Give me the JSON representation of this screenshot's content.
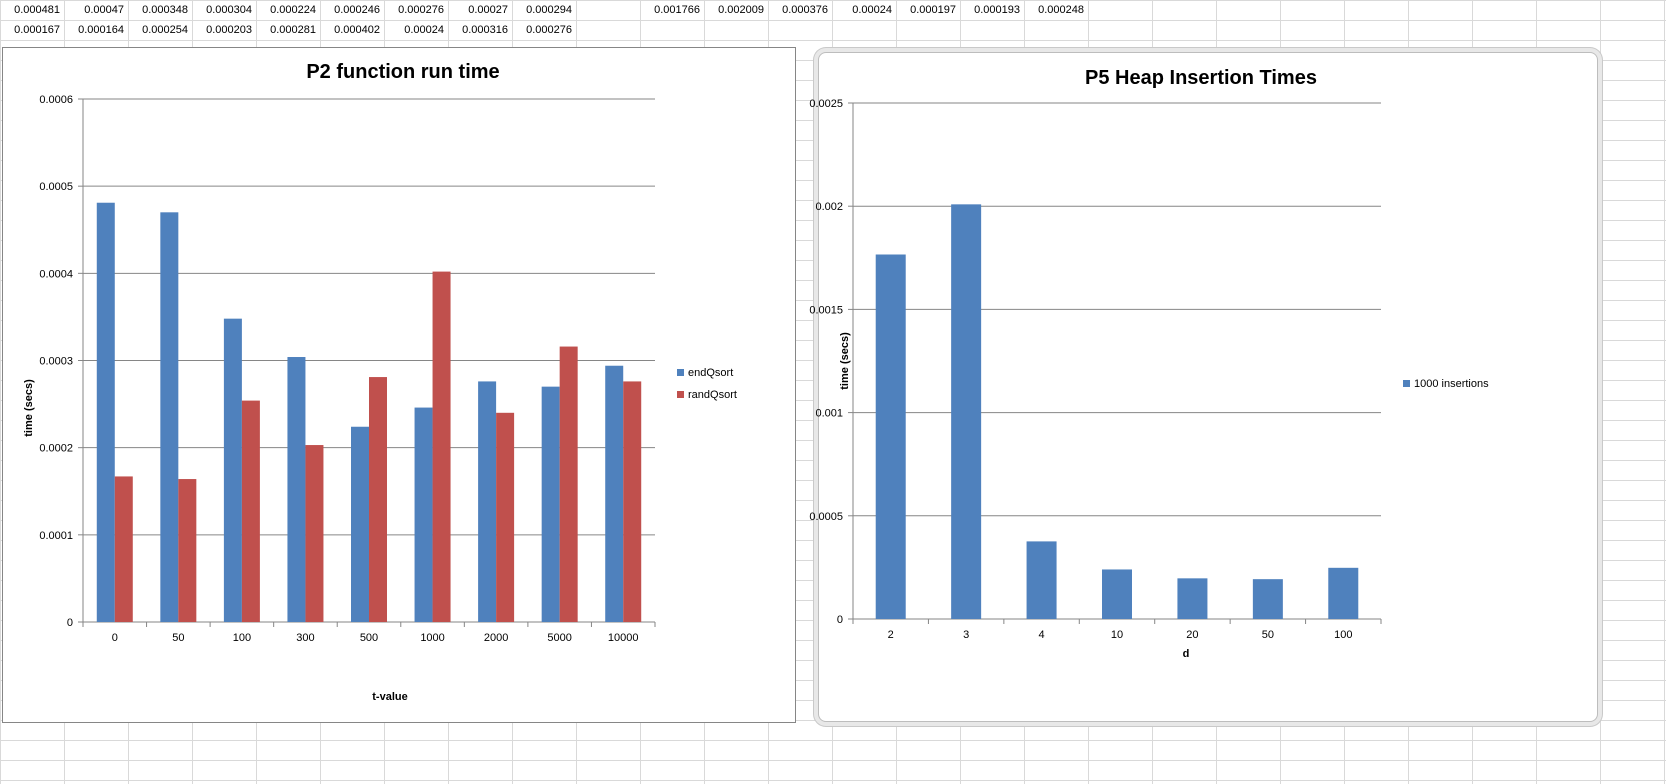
{
  "spreadsheet": {
    "row1_left": [
      "0.000481",
      "0.00047",
      "0.000348",
      "0.000304",
      "0.000224",
      "0.000246",
      "0.000276",
      "0.00027",
      "0.000294"
    ],
    "row2_left": [
      "0.000167",
      "0.000164",
      "0.000254",
      "0.000203",
      "0.000281",
      "0.000402",
      "0.00024",
      "0.000316",
      "0.000276"
    ],
    "row1_right": [
      "0.001766",
      "0.002009",
      "0.000376",
      "0.00024",
      "0.000197",
      "0.000193",
      "0.000248"
    ]
  },
  "chart_data": [
    {
      "type": "bar",
      "title": "P2 function run time",
      "xlabel": "t-value",
      "ylabel": "time (secs)",
      "categories": [
        "0",
        "50",
        "100",
        "300",
        "500",
        "1000",
        "2000",
        "5000",
        "10000"
      ],
      "series": [
        {
          "name": "endQsort",
          "color": "#4F81BD",
          "values": [
            0.000481,
            0.00047,
            0.000348,
            0.000304,
            0.000224,
            0.000246,
            0.000276,
            0.00027,
            0.000294
          ]
        },
        {
          "name": "randQsort",
          "color": "#C0504D",
          "values": [
            0.000167,
            0.000164,
            0.000254,
            0.000203,
            0.000281,
            0.000402,
            0.00024,
            0.000316,
            0.000276
          ]
        }
      ],
      "ylim": [
        0,
        0.0006
      ],
      "yticks": [
        "0",
        "0.0001",
        "0.0002",
        "0.0003",
        "0.0004",
        "0.0005",
        "0.0006"
      ],
      "grid": true,
      "legend": "right"
    },
    {
      "type": "bar",
      "title": "P5 Heap Insertion Times",
      "xlabel": "d",
      "ylabel": "time (secs)",
      "categories": [
        "2",
        "3",
        "4",
        "10",
        "20",
        "50",
        "100"
      ],
      "series": [
        {
          "name": "1000 insertions",
          "color": "#4F81BD",
          "values": [
            0.001766,
            0.002009,
            0.000376,
            0.00024,
            0.000197,
            0.000193,
            0.000248
          ]
        }
      ],
      "ylim": [
        0,
        0.0025
      ],
      "yticks": [
        "0",
        "0.0005",
        "0.001",
        "0.0015",
        "0.002",
        "0.0025"
      ],
      "grid": true,
      "legend": "right"
    }
  ]
}
